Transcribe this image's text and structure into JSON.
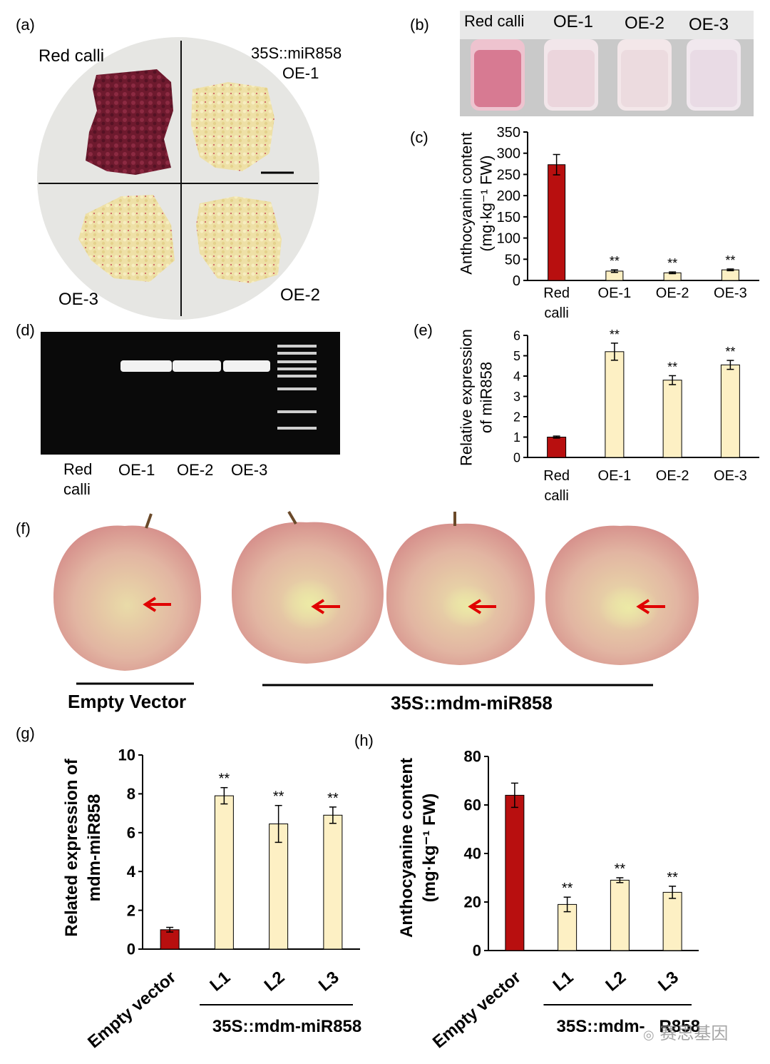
{
  "panel_labels": {
    "a": "(a)",
    "b": "(b)",
    "c": "(c)",
    "d": "(d)",
    "e": "(e)",
    "f": "(f)",
    "g": "(g)",
    "h": "(h)"
  },
  "panel_a": {
    "label_red_calli": "Red calli",
    "label_oe1_line1": "35S::miR858",
    "label_oe1_line2": "OE-1",
    "label_oe3": "OE-3",
    "label_oe2": "OE-2"
  },
  "panel_b": {
    "tube_labels": [
      "Red calli",
      "OE-1",
      "OE-2",
      "OE-3"
    ]
  },
  "panel_d": {
    "lane_labels": [
      "Red\ncalli",
      "OE-1",
      "OE-2",
      "OE-3"
    ],
    "lane_label_red_1": "Red",
    "lane_label_red_2": "calli"
  },
  "panel_f": {
    "group_empty": "Empty Vector",
    "group_mir": "35S::mdm-miR858"
  },
  "colors": {
    "red_bar": "#b80f0f",
    "cream_bar": "#fdf0c4"
  },
  "chart_data": [
    {
      "id": "c",
      "type": "bar",
      "ylabel": [
        "Anthocyanin content",
        "(mg·kg⁻¹ FW)"
      ],
      "categories": [
        "Red\ncalli",
        "OE-1",
        "OE-2",
        "OE-3"
      ],
      "values": [
        273,
        22,
        18,
        25
      ],
      "errors": [
        24,
        3,
        2,
        2
      ],
      "sig": [
        "",
        "**",
        "**",
        "**"
      ],
      "ylim": [
        0,
        350
      ],
      "yticks": [
        "0",
        "50",
        "100",
        "150",
        "200",
        "250",
        "300",
        "350"
      ]
    },
    {
      "id": "e",
      "type": "bar",
      "ylabel": [
        "Relative expression",
        "of miR858"
      ],
      "categories": [
        "Red\ncalli",
        "OE-1",
        "OE-2",
        "OE-3"
      ],
      "values": [
        1.0,
        5.2,
        3.8,
        4.55
      ],
      "errors": [
        0.05,
        0.42,
        0.22,
        0.22
      ],
      "sig": [
        "",
        "**",
        "**",
        "**"
      ],
      "ylim": [
        0,
        6
      ],
      "yticks": [
        "0",
        "1",
        "2",
        "3",
        "4",
        "5",
        "6"
      ]
    },
    {
      "id": "g",
      "type": "bar",
      "ylabel": [
        "Related expression of",
        "mdm-miR858"
      ],
      "categories": [
        "Empty vector",
        "L1",
        "L2",
        "L3"
      ],
      "group_label": "35S::mdm-miR858",
      "values": [
        1.0,
        7.9,
        6.45,
        6.9
      ],
      "errors": [
        0.12,
        0.42,
        0.95,
        0.42
      ],
      "sig": [
        "",
        "**",
        "**",
        "**"
      ],
      "ylim": [
        0,
        10
      ],
      "yticks": [
        "0",
        "2",
        "4",
        "6",
        "8",
        "10"
      ]
    },
    {
      "id": "h",
      "type": "bar",
      "ylabel": [
        "Anthocyanine content",
        "(mg·kg⁻¹ FW)"
      ],
      "categories": [
        "Empty vector",
        "L1",
        "L2",
        "L3"
      ],
      "group_label": "35S::mdm-",
      "group_label_tail": "R858",
      "values": [
        64,
        19,
        29,
        24
      ],
      "errors": [
        5,
        3,
        1,
        2.5
      ],
      "sig": [
        "",
        "**",
        "**",
        "**"
      ],
      "ylim": [
        0,
        80
      ],
      "yticks": [
        "0",
        "20",
        "40",
        "60",
        "80"
      ]
    }
  ],
  "watermark": "赛思基因"
}
